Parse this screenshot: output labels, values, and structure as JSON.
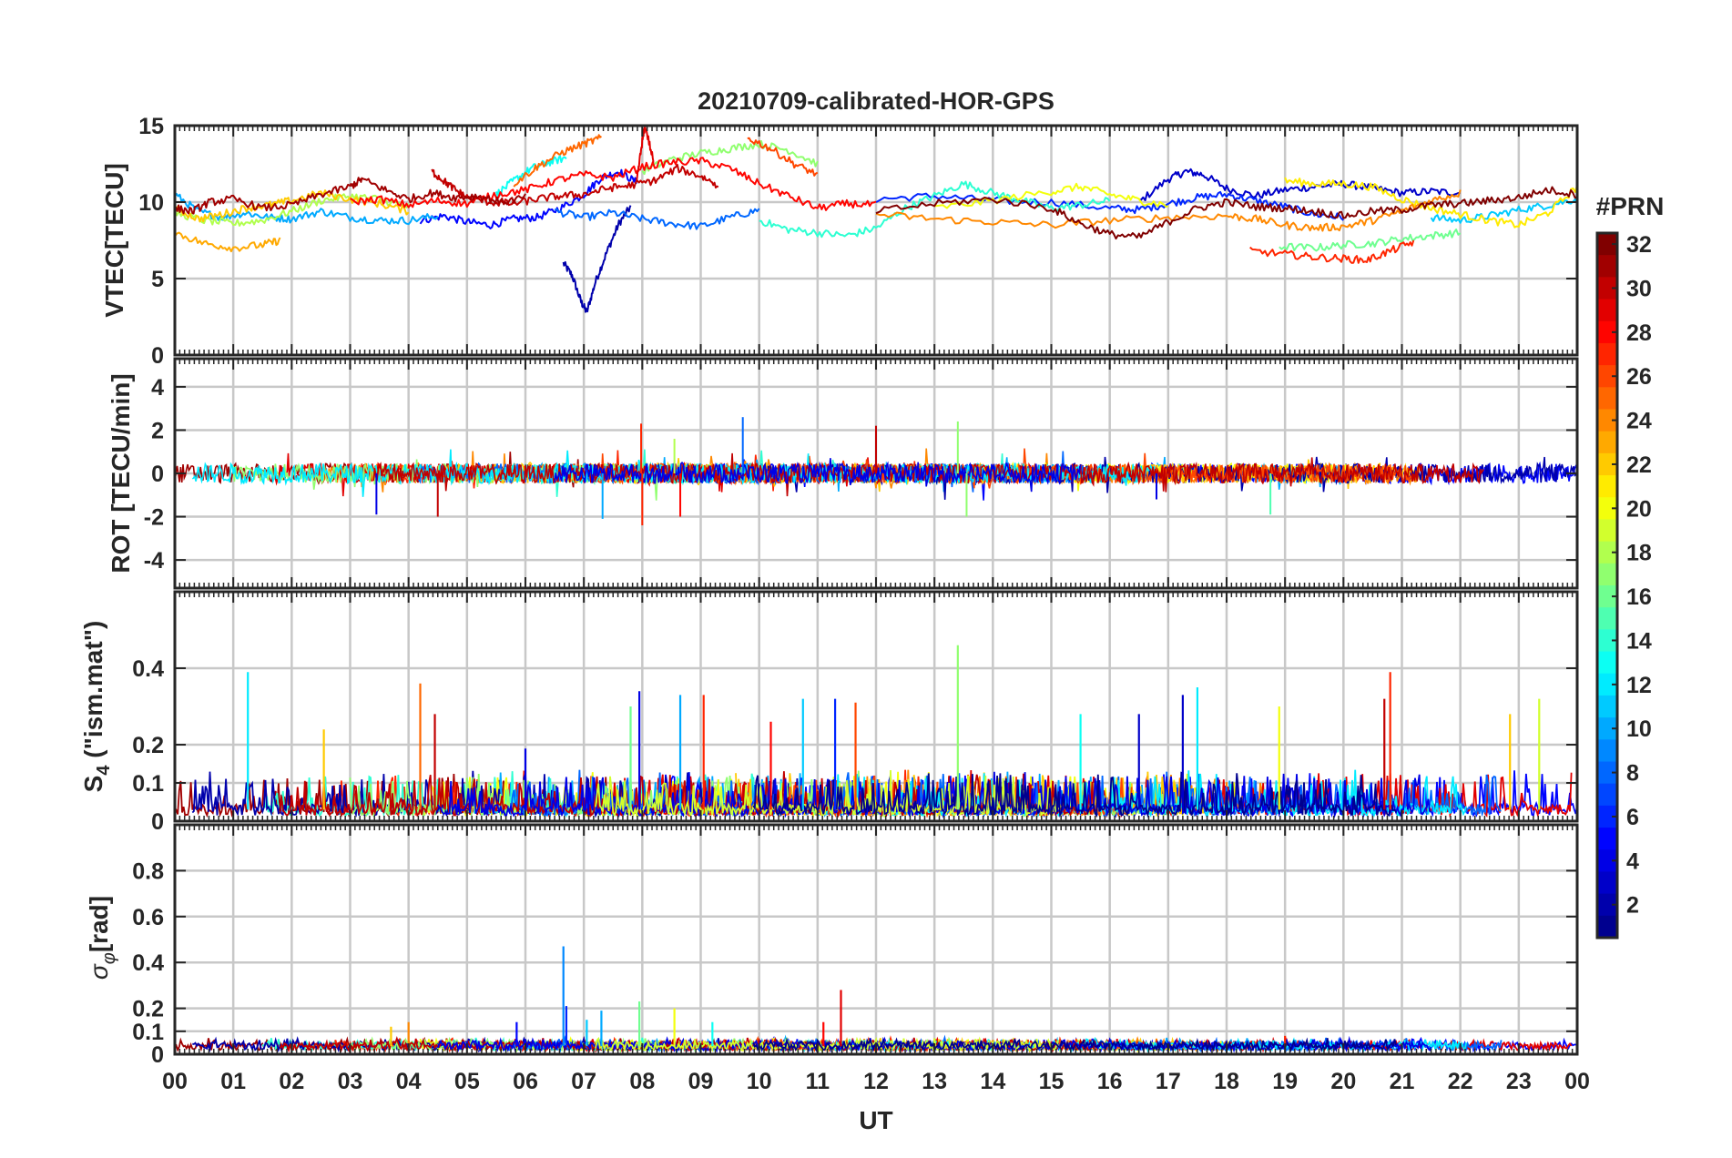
{
  "chart_data": {
    "type": "line",
    "title": "20210709-calibrated-HOR-GPS",
    "xlabel": "UT",
    "x_tick_labels": [
      "00",
      "01",
      "02",
      "03",
      "04",
      "05",
      "06",
      "07",
      "08",
      "09",
      "10",
      "11",
      "12",
      "13",
      "14",
      "15",
      "16",
      "17",
      "18",
      "19",
      "20",
      "21",
      "22",
      "23",
      "00"
    ],
    "xlim": [
      0,
      24
    ],
    "grid": true,
    "colorbar": {
      "label": "#PRN",
      "range": [
        1,
        32
      ],
      "ticks": [
        "2",
        "4",
        "6",
        "8",
        "10",
        "12",
        "14",
        "16",
        "18",
        "20",
        "22",
        "24",
        "26",
        "28",
        "30",
        "32"
      ],
      "colormap": "jet",
      "colors": [
        "#00008f",
        "#0000ff",
        "#0080ff",
        "#00ffff",
        "#80ff80",
        "#ffff00",
        "#ff8000",
        "#ff0000",
        "#800000"
      ]
    },
    "panels": [
      {
        "id": "vtec",
        "ylabel": "VTEC[TECU]",
        "ylim": [
          0,
          15
        ],
        "yticks": [
          "0",
          "5",
          "10",
          "15"
        ],
        "series": [
          {
            "prn": 2,
            "x": [
              6.65,
              6.8,
              6.95,
              7.05,
              7.2,
              7.4,
              7.6,
              7.8
            ],
            "values": [
              6.0,
              5.2,
              3.5,
              2.8,
              4.8,
              6.8,
              8.6,
              9.7
            ]
          },
          {
            "prn": 3,
            "x": [
              16.5,
              17.0,
              17.3,
              17.6,
              18.0,
              18.5,
              19.0,
              19.5,
              20.0,
              20.5,
              21.0,
              21.5,
              22.0
            ],
            "values": [
              10.0,
              11.5,
              12.0,
              11.8,
              10.9,
              10.4,
              10.8,
              11.0,
              11.2,
              10.9,
              10.6,
              10.7,
              10.6
            ]
          },
          {
            "prn": 5,
            "x": [
              4.2,
              4.6,
              5.0,
              5.4,
              5.8,
              6.2,
              6.6,
              7.0,
              7.3,
              7.6,
              7.9
            ],
            "values": [
              8.8,
              9.1,
              8.7,
              8.5,
              8.9,
              9.0,
              9.6,
              10.5,
              11.6,
              12.0,
              11.3
            ]
          },
          {
            "prn": 6,
            "x": [
              12.0,
              13.0,
              14.0,
              15.0,
              16.0,
              16.5,
              17.0,
              17.5,
              18.0,
              18.5,
              19.0,
              19.5,
              20.0
            ],
            "values": [
              10.2,
              10.4,
              10.1,
              10.0,
              9.6,
              9.5,
              9.9,
              10.3,
              10.5,
              10.1,
              9.7,
              9.2,
              9.0
            ]
          },
          {
            "prn": 8,
            "x": [
              6.5,
              7.0,
              7.5,
              8.0,
              8.5,
              9.0,
              9.5,
              10.0
            ],
            "values": [
              9.4,
              9.0,
              9.3,
              8.9,
              8.6,
              8.4,
              9.0,
              9.5
            ]
          },
          {
            "prn": 10,
            "x": [
              0.0,
              0.4,
              0.8,
              1.2,
              1.6,
              2.0,
              2.5,
              3.0,
              3.5,
              4.0,
              4.5
            ],
            "values": [
              10.5,
              9.4,
              9.0,
              9.3,
              9.0,
              8.9,
              9.4,
              9.0,
              8.8,
              8.8,
              9.1
            ]
          },
          {
            "prn": 11,
            "x": [
              21.5,
              22.0,
              22.5,
              23.0,
              23.5,
              24.0
            ],
            "values": [
              9.0,
              8.8,
              9.1,
              9.5,
              9.8,
              10.2
            ]
          },
          {
            "prn": 13,
            "x": [
              5.5,
              5.8,
              6.1,
              6.4,
              6.7
            ],
            "values": [
              10.5,
              11.4,
              12.2,
              12.6,
              12.9
            ]
          },
          {
            "prn": 14,
            "x": [
              10.0,
              10.5,
              11.0,
              11.5,
              12.0,
              12.5,
              13.0,
              13.5,
              14.0,
              14.5,
              15.0,
              15.5,
              16.0
            ],
            "values": [
              8.8,
              8.2,
              8.0,
              7.8,
              8.3,
              9.6,
              10.4,
              11.2,
              10.6,
              10.1,
              9.6,
              9.8,
              10.1
            ]
          },
          {
            "prn": 16,
            "x": [
              18.9,
              19.5,
              20.0,
              20.5,
              21.0,
              21.5,
              22.0
            ],
            "values": [
              7.1,
              7.0,
              7.2,
              7.3,
              7.6,
              7.8,
              8.0
            ]
          },
          {
            "prn": 17,
            "x": [
              8.0,
              8.5,
              9.0,
              9.5,
              10.0,
              10.5,
              11.0
            ],
            "values": [
              12.0,
              12.8,
              13.2,
              13.5,
              13.8,
              13.4,
              12.5
            ]
          },
          {
            "prn": 18,
            "x": [
              0.0,
              0.5,
              1.0,
              1.5,
              2.0,
              2.5,
              3.0,
              3.5,
              4.0
            ],
            "values": [
              9.3,
              8.8,
              8.6,
              8.8,
              9.4,
              10.1,
              10.4,
              10.2,
              9.7
            ]
          },
          {
            "prn": 20,
            "x": [
              13.0,
              14.0,
              15.0,
              15.5,
              16.0,
              16.5,
              17.0
            ],
            "values": [
              9.6,
              10.1,
              10.7,
              11.0,
              10.5,
              10.1,
              9.8
            ]
          },
          {
            "prn": 21,
            "x": [
              19.0,
              19.5,
              20.0,
              20.5,
              21.0,
              21.5,
              22.0,
              22.5,
              23.0,
              23.5,
              24.0
            ],
            "values": [
              11.4,
              11.2,
              11.2,
              11.0,
              10.2,
              9.6,
              9.2,
              8.8,
              8.5,
              9.3,
              11.0
            ]
          },
          {
            "prn": 22,
            "x": [
              0.0,
              0.4,
              0.8,
              1.2,
              1.6,
              2.0,
              2.5,
              3.0,
              3.5,
              4.0
            ],
            "values": [
              9.6,
              8.9,
              9.2,
              9.6,
              9.8,
              10.1,
              10.6,
              10.2,
              9.9,
              9.4
            ]
          },
          {
            "prn": 23,
            "x": [
              0.0,
              0.5,
              1.0,
              1.5,
              1.8
            ],
            "values": [
              8.0,
              7.3,
              7.0,
              7.2,
              7.5
            ]
          },
          {
            "prn": 24,
            "x": [
              12.0,
              13.0,
              14.0,
              15.0,
              16.0,
              17.0,
              18.0,
              18.5,
              19.0,
              19.5,
              20.0,
              20.5,
              21.0,
              21.5,
              22.0
            ],
            "values": [
              9.2,
              8.9,
              8.7,
              8.5,
              8.8,
              9.0,
              9.1,
              8.9,
              8.5,
              8.3,
              8.4,
              8.8,
              9.4,
              10.1,
              10.6
            ]
          },
          {
            "prn": 25,
            "x": [
              5.8,
              6.2,
              6.6,
              7.0,
              7.3
            ],
            "values": [
              11.2,
              12.3,
              13.2,
              13.8,
              14.2
            ]
          },
          {
            "prn": 26,
            "x": [
              9.8,
              10.2,
              10.6,
              11.0
            ],
            "values": [
              14.2,
              13.5,
              12.5,
              11.8
            ]
          },
          {
            "prn": 27,
            "x": [
              18.4,
              19.0,
              19.5,
              20.0,
              20.4,
              20.8,
              21.2
            ],
            "values": [
              6.8,
              6.6,
              6.4,
              6.3,
              6.2,
              6.8,
              7.4
            ]
          },
          {
            "prn": 28,
            "x": [
              3.0,
              3.5,
              4.0,
              4.5,
              5.0,
              5.5,
              6.0,
              6.5,
              7.0,
              7.5,
              8.0,
              8.5,
              9.0,
              9.5,
              10.0,
              10.5,
              11.0,
              11.5,
              12.0
            ],
            "values": [
              10.0,
              10.2,
              9.8,
              10.1,
              9.9,
              10.5,
              10.8,
              11.4,
              11.8,
              11.6,
              12.3,
              12.6,
              12.7,
              12.2,
              11.2,
              10.4,
              9.6,
              9.9,
              9.8
            ]
          },
          {
            "prn": 29,
            "x": [
              7.9,
              8.0,
              8.05,
              8.2
            ],
            "values": [
              11.2,
              14.0,
              15.0,
              12.5
            ]
          },
          {
            "prn": 30,
            "x": [
              4.4,
              4.6,
              4.8,
              5.0,
              5.4,
              5.8,
              6.2,
              6.6,
              7.0,
              7.4,
              7.8,
              8.2,
              8.6,
              9.0,
              9.3
            ],
            "values": [
              12.0,
              11.4,
              10.8,
              10.3,
              10.0,
              9.9,
              10.2,
              10.4,
              10.5,
              10.9,
              11.1,
              11.4,
              12.2,
              11.7,
              11.1
            ]
          },
          {
            "prn": 31,
            "x": [
              0.0,
              0.3,
              0.6,
              1.0,
              1.5,
              2.0,
              2.5,
              3.0,
              3.2,
              3.6,
              4.0,
              4.4,
              4.8,
              5.2,
              5.6,
              6.0
            ],
            "values": [
              9.6,
              9.4,
              10.0,
              10.2,
              9.6,
              9.8,
              10.5,
              11.0,
              11.5,
              10.8,
              10.2,
              10.6,
              10.3,
              10.4,
              10.0,
              10.3
            ]
          },
          {
            "prn": 32,
            "x": [
              12.0,
              13.0,
              14.0,
              15.0,
              15.5,
              16.0,
              16.5,
              17.0,
              17.5,
              18.0,
              18.5,
              19.0,
              19.5,
              20.0,
              20.5,
              21.0,
              21.5,
              22.0,
              22.5,
              23.0,
              23.5,
              24.0
            ],
            "values": [
              9.4,
              9.9,
              10.2,
              9.6,
              8.6,
              7.9,
              7.7,
              8.7,
              9.6,
              10.0,
              9.7,
              9.6,
              9.4,
              9.1,
              9.4,
              9.5,
              9.8,
              9.9,
              10.1,
              10.3,
              10.8,
              10.5
            ]
          }
        ]
      },
      {
        "id": "rot",
        "ylabel": "ROT [TECU/min]",
        "ylim": [
          -5.3,
          5.3
        ],
        "yticks": [
          "-4",
          "-2",
          "0",
          "2",
          "4"
        ],
        "envelope": "dense noisy traces of all PRNs around 0 with amplitude about ±0.5, occasional spikes",
        "spikes": [
          {
            "prn": 4,
            "x": 3.45,
            "value": -1.9
          },
          {
            "prn": 30,
            "x": 4.5,
            "value": -2.0
          },
          {
            "prn": 27,
            "x": 7.98,
            "value": 2.3
          },
          {
            "prn": 27,
            "x": 8.0,
            "value": -2.4
          },
          {
            "prn": 10,
            "x": 7.32,
            "value": -2.1
          },
          {
            "prn": 28,
            "x": 8.65,
            "value": -2.0
          },
          {
            "prn": 18,
            "x": 8.55,
            "value": 1.6
          },
          {
            "prn": 8,
            "x": 9.72,
            "value": 2.6
          },
          {
            "prn": 30,
            "x": 12.0,
            "value": 2.2
          },
          {
            "prn": 17,
            "x": 13.4,
            "value": 2.4
          },
          {
            "prn": 17,
            "x": 13.55,
            "value": -2.0
          },
          {
            "prn": 15,
            "x": 18.75,
            "value": -1.9
          },
          {
            "prn": 4,
            "x": 16.8,
            "value": -1.2
          }
        ]
      },
      {
        "id": "s4",
        "ylabel_main": "S",
        "ylabel_sub": "4",
        "ylabel_rest": " (\"ism.mat\")",
        "ylim": [
          0,
          0.6
        ],
        "yticks": [
          "0",
          "0.1",
          "0.2",
          "0.4"
        ],
        "baseline": 0.03,
        "spikes": [
          {
            "prn": 12,
            "x": 1.25,
            "value": 0.39
          },
          {
            "prn": 22,
            "x": 2.55,
            "value": 0.24
          },
          {
            "prn": 25,
            "x": 4.2,
            "value": 0.36
          },
          {
            "prn": 30,
            "x": 4.45,
            "value": 0.28
          },
          {
            "prn": 4,
            "x": 6.0,
            "value": 0.19
          },
          {
            "prn": 16,
            "x": 7.8,
            "value": 0.3
          },
          {
            "prn": 4,
            "x": 7.95,
            "value": 0.34
          },
          {
            "prn": 10,
            "x": 8.65,
            "value": 0.33
          },
          {
            "prn": 27,
            "x": 9.05,
            "value": 0.33
          },
          {
            "prn": 28,
            "x": 10.2,
            "value": 0.26
          },
          {
            "prn": 11,
            "x": 10.75,
            "value": 0.32
          },
          {
            "prn": 6,
            "x": 11.3,
            "value": 0.32
          },
          {
            "prn": 26,
            "x": 11.65,
            "value": 0.31
          },
          {
            "prn": 17,
            "x": 13.4,
            "value": 0.46
          },
          {
            "prn": 13,
            "x": 15.5,
            "value": 0.28
          },
          {
            "prn": 3,
            "x": 16.5,
            "value": 0.28
          },
          {
            "prn": 3,
            "x": 17.25,
            "value": 0.33
          },
          {
            "prn": 12,
            "x": 17.5,
            "value": 0.35
          },
          {
            "prn": 20,
            "x": 18.9,
            "value": 0.3
          },
          {
            "prn": 30,
            "x": 20.7,
            "value": 0.32
          },
          {
            "prn": 27,
            "x": 20.8,
            "value": 0.39
          },
          {
            "prn": 22,
            "x": 22.85,
            "value": 0.28
          },
          {
            "prn": 19,
            "x": 23.35,
            "value": 0.32
          }
        ]
      },
      {
        "id": "sigphi",
        "ylabel_main": "σ",
        "ylabel_sub": "φ",
        "ylabel_rest": "[rad]",
        "ylim": [
          0,
          1.0
        ],
        "yticks": [
          "0",
          "0.1",
          "0.2",
          "0.4",
          "0.6",
          "0.8"
        ],
        "baseline": 0.035,
        "spikes": [
          {
            "prn": 9,
            "x": 6.65,
            "value": 0.47
          },
          {
            "prn": 6,
            "x": 6.7,
            "value": 0.21
          },
          {
            "prn": 11,
            "x": 7.05,
            "value": 0.15
          },
          {
            "prn": 10,
            "x": 7.3,
            "value": 0.19
          },
          {
            "prn": 16,
            "x": 7.95,
            "value": 0.23
          },
          {
            "prn": 20,
            "x": 8.55,
            "value": 0.2
          },
          {
            "prn": 5,
            "x": 5.85,
            "value": 0.14
          },
          {
            "prn": 22,
            "x": 3.7,
            "value": 0.12
          },
          {
            "prn": 24,
            "x": 4.0,
            "value": 0.14
          },
          {
            "prn": 29,
            "x": 11.4,
            "value": 0.28
          },
          {
            "prn": 28,
            "x": 11.1,
            "value": 0.14
          },
          {
            "prn": 13,
            "x": 9.2,
            "value": 0.14
          },
          {
            "prn": 27,
            "x": 19.0,
            "value": 0.08
          }
        ]
      }
    ]
  }
}
